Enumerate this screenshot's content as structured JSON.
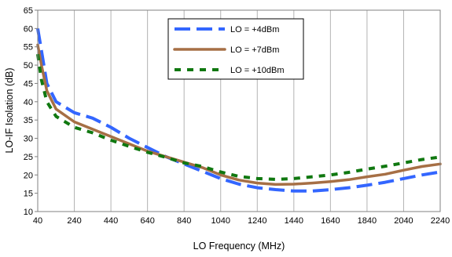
{
  "chart_data": {
    "type": "line",
    "xlabel": "LO Frequency (MHz)",
    "ylabel": "LO-IF Isolation (dB)",
    "xlim": [
      40,
      2240
    ],
    "ylim": [
      10,
      65
    ],
    "xticks": [
      "40",
      "240",
      "440",
      "640",
      "840",
      "1040",
      "1240",
      "1440",
      "1640",
      "1840",
      "2040",
      "2240"
    ],
    "yticks": [
      "10",
      "15",
      "20",
      "25",
      "30",
      "35",
      "40",
      "45",
      "50",
      "55",
      "60",
      "65"
    ],
    "grid": "vertical",
    "legend_position": "top-center",
    "series": [
      {
        "name": "LO = +4dBm",
        "color": "#3366ff",
        "style": "long-dash",
        "points": [
          [
            40,
            60
          ],
          [
            60,
            54
          ],
          [
            90,
            45
          ],
          [
            140,
            40
          ],
          [
            240,
            37
          ],
          [
            340,
            35.5
          ],
          [
            440,
            33
          ],
          [
            540,
            30
          ],
          [
            640,
            27.5
          ],
          [
            740,
            25
          ],
          [
            840,
            23
          ],
          [
            940,
            21
          ],
          [
            1040,
            19
          ],
          [
            1140,
            17.5
          ],
          [
            1240,
            16.5
          ],
          [
            1340,
            16
          ],
          [
            1440,
            15.6
          ],
          [
            1540,
            15.6
          ],
          [
            1640,
            16
          ],
          [
            1740,
            16.5
          ],
          [
            1840,
            17.2
          ],
          [
            1940,
            18
          ],
          [
            2040,
            19
          ],
          [
            2140,
            20
          ],
          [
            2240,
            20.8
          ]
        ]
      },
      {
        "name": "LO = +7dBm",
        "color": "#a66f45",
        "style": "solid",
        "points": [
          [
            40,
            55.5
          ],
          [
            60,
            50
          ],
          [
            90,
            43
          ],
          [
            140,
            38
          ],
          [
            240,
            34.5
          ],
          [
            340,
            32.5
          ],
          [
            440,
            30.5
          ],
          [
            540,
            28.5
          ],
          [
            640,
            26.5
          ],
          [
            740,
            25
          ],
          [
            840,
            23.5
          ],
          [
            940,
            22
          ],
          [
            1040,
            20
          ],
          [
            1140,
            18.6
          ],
          [
            1240,
            17.8
          ],
          [
            1340,
            17.4
          ],
          [
            1440,
            17.5
          ],
          [
            1540,
            17.8
          ],
          [
            1640,
            18.2
          ],
          [
            1740,
            18.7
          ],
          [
            1840,
            19.5
          ],
          [
            1940,
            20.2
          ],
          [
            2040,
            21.3
          ],
          [
            2140,
            22.3
          ],
          [
            2240,
            23
          ]
        ]
      },
      {
        "name": "LO = +10dBm",
        "color": "#107810",
        "style": "short-dash",
        "points": [
          [
            40,
            53
          ],
          [
            60,
            46
          ],
          [
            90,
            40
          ],
          [
            140,
            36
          ],
          [
            240,
            33
          ],
          [
            340,
            31.5
          ],
          [
            440,
            29.5
          ],
          [
            540,
            27.8
          ],
          [
            640,
            26.2
          ],
          [
            740,
            24.8
          ],
          [
            840,
            23.3
          ],
          [
            940,
            22.3
          ],
          [
            1040,
            20.8
          ],
          [
            1140,
            19.6
          ],
          [
            1240,
            19
          ],
          [
            1340,
            18.8
          ],
          [
            1440,
            19
          ],
          [
            1540,
            19.5
          ],
          [
            1640,
            20
          ],
          [
            1740,
            20.7
          ],
          [
            1840,
            21.6
          ],
          [
            1940,
            22.4
          ],
          [
            2040,
            23.3
          ],
          [
            2140,
            24.2
          ],
          [
            2240,
            24.9
          ]
        ]
      }
    ]
  }
}
